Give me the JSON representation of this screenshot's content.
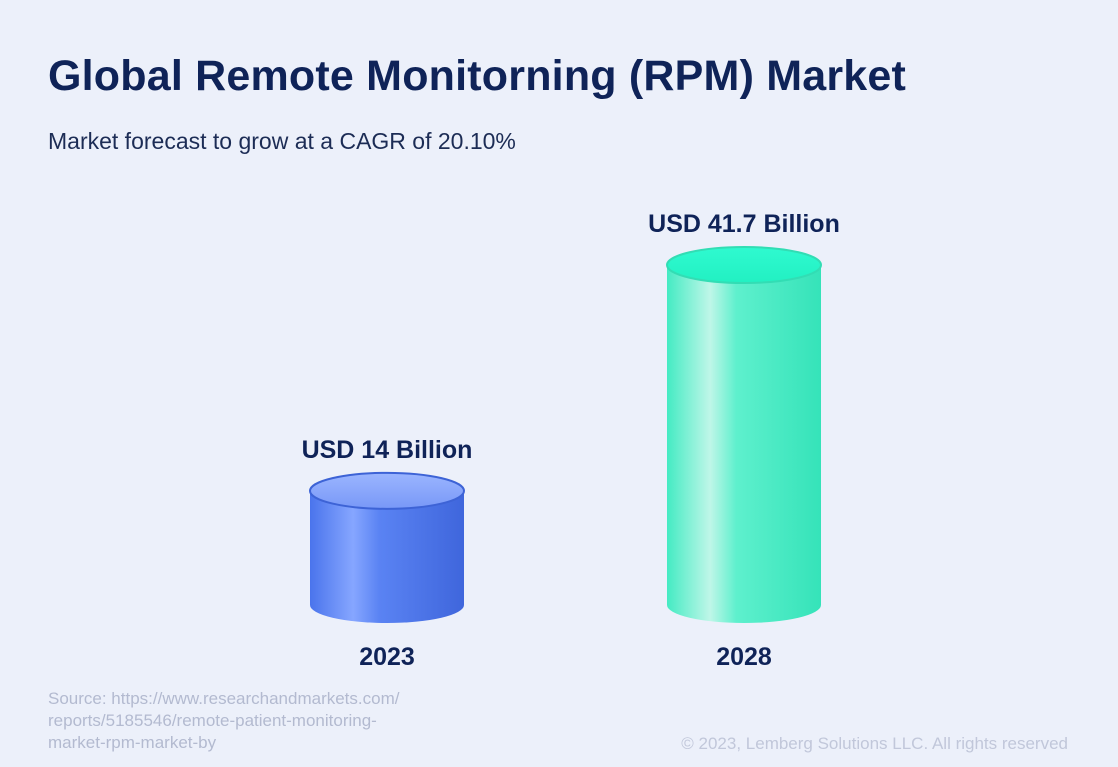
{
  "title": "Global Remote Monitorning (RPM) Market",
  "subtitle": "Market forecast to grow at a CAGR of 20.10%",
  "chart_data": {
    "type": "bar",
    "title": "Global Remote Monitorning (RPM) Market",
    "subtitle": "Market forecast to grow at a CAGR of 20.10%",
    "categories": [
      "2023",
      "2028"
    ],
    "values": [
      14,
      41.7
    ],
    "unit": "USD Billion",
    "data_labels": [
      "USD 14 Billion",
      "USD 41.7 Billion"
    ],
    "colors": [
      "#4f7cf0",
      "#3eefc6"
    ],
    "ylim": [
      0,
      41.7
    ],
    "xlabel": "",
    "ylabel": "",
    "grid": false,
    "legend": "none"
  },
  "footer": {
    "source_lines": [
      "Source: https://www.researchandmarkets.com/",
      "reports/5185546/remote-patient-monitoring-",
      "market-rpm-market-by"
    ],
    "copyright": "© 2023, Lemberg Solutions LLC. All rights reserved"
  }
}
